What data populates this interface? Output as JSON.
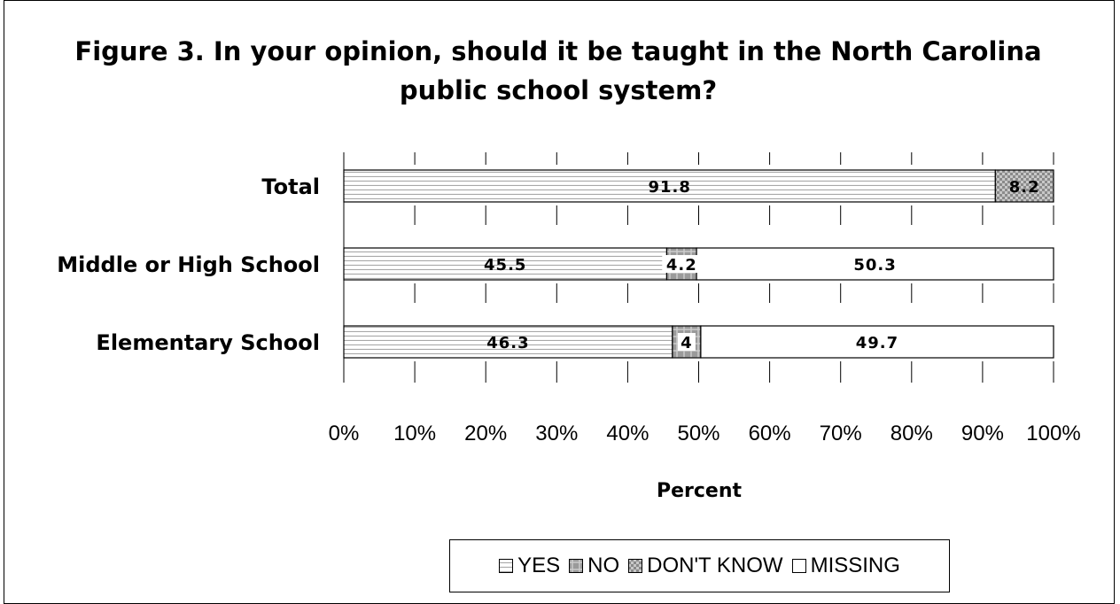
{
  "chart_data": {
    "type": "bar",
    "orientation": "horizontal",
    "stacked": "percent",
    "title": "Figure 3. In your opinion, should it be taught in the North Carolina public school system?",
    "categories": [
      "Total",
      "Middle or High School",
      "Elementary School"
    ],
    "series": [
      {
        "name": "YES",
        "values": [
          91.8,
          45.5,
          46.3
        ],
        "labels": [
          "91.8",
          "45.5",
          "46.3"
        ],
        "fill": "pattern-hlines"
      },
      {
        "name": "NO",
        "values": [
          0,
          4.2,
          4
        ],
        "labels": [
          "",
          "4.2",
          "4"
        ],
        "fill": "pattern-grid-dark"
      },
      {
        "name": "DON'T KNOW",
        "values": [
          8.2,
          0,
          0
        ],
        "labels": [
          "8.2",
          "",
          ""
        ],
        "fill": "pattern-checker"
      },
      {
        "name": "MISSING",
        "values": [
          0,
          50.3,
          49.7
        ],
        "labels": [
          "",
          "50.3",
          "49.7"
        ],
        "fill": "#ffffff"
      }
    ],
    "xlabel": "Percent",
    "xlim": [
      0,
      100
    ],
    "xticks": [
      "0%",
      "10%",
      "20%",
      "30%",
      "40%",
      "50%",
      "60%",
      "70%",
      "80%",
      "90%",
      "100%"
    ],
    "grid": "vertical tick marks",
    "legend_position": "bottom"
  }
}
